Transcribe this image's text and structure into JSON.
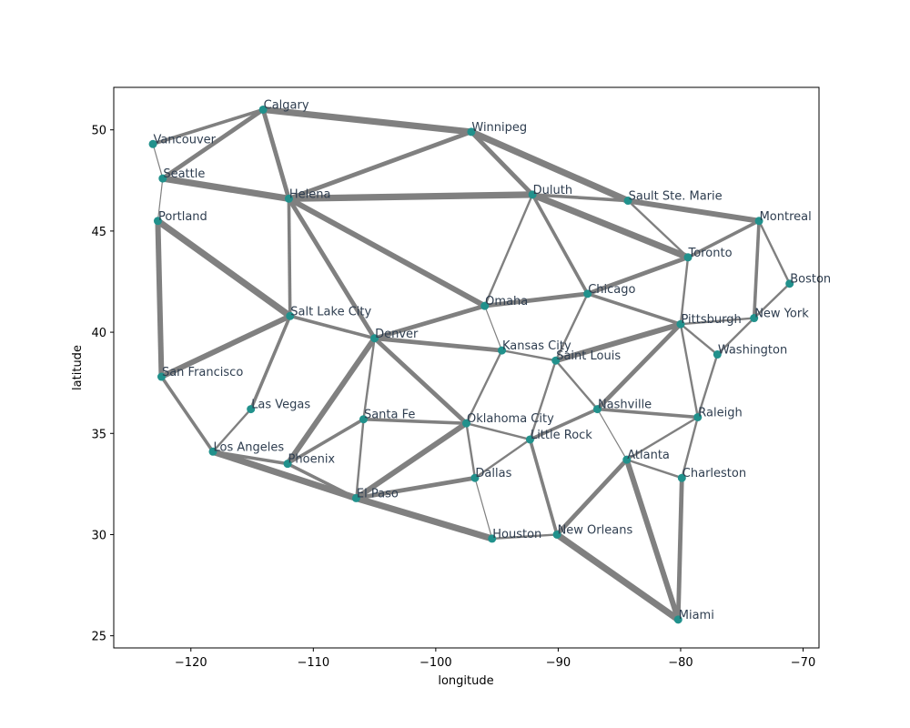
{
  "chart_data": {
    "type": "scatter",
    "title": "",
    "xlabel": "longitude",
    "ylabel": "latitude",
    "xlim": [
      -126.3,
      -68.7
    ],
    "ylim": [
      24.4,
      52.1
    ],
    "x_ticks": [
      -120,
      -110,
      -100,
      -90,
      -80,
      -70
    ],
    "x_tick_labels": [
      "−120",
      "−110",
      "−100",
      "−90",
      "−80",
      "−70"
    ],
    "y_ticks": [
      25,
      30,
      35,
      40,
      45,
      50
    ],
    "y_tick_labels": [
      "25",
      "30",
      "35",
      "40",
      "45",
      "50"
    ],
    "grid": false,
    "colors": {
      "node": "#21918c",
      "edge": "#808080",
      "label": "#2e3d4f"
    },
    "nodes": [
      {
        "name": "Vancouver",
        "lon": -123.1,
        "lat": 49.3
      },
      {
        "name": "Calgary",
        "lon": -114.1,
        "lat": 51.0
      },
      {
        "name": "Winnipeg",
        "lon": -97.1,
        "lat": 49.9
      },
      {
        "name": "Seattle",
        "lon": -122.3,
        "lat": 47.6
      },
      {
        "name": "Helena",
        "lon": -112.0,
        "lat": 46.6
      },
      {
        "name": "Duluth",
        "lon": -92.1,
        "lat": 46.8
      },
      {
        "name": "Sault Ste. Marie",
        "lon": -84.3,
        "lat": 46.5
      },
      {
        "name": "Montreal",
        "lon": -73.6,
        "lat": 45.5
      },
      {
        "name": "Portland",
        "lon": -122.7,
        "lat": 45.5
      },
      {
        "name": "Toronto",
        "lon": -79.4,
        "lat": 43.7
      },
      {
        "name": "Boston",
        "lon": -71.1,
        "lat": 42.4
      },
      {
        "name": "Omaha",
        "lon": -96.0,
        "lat": 41.3
      },
      {
        "name": "Chicago",
        "lon": -87.6,
        "lat": 41.9
      },
      {
        "name": "Salt Lake City",
        "lon": -111.9,
        "lat": 40.8
      },
      {
        "name": "Pittsburgh",
        "lon": -80.0,
        "lat": 40.4
      },
      {
        "name": "New York",
        "lon": -74.0,
        "lat": 40.7
      },
      {
        "name": "Denver",
        "lon": -105.0,
        "lat": 39.7
      },
      {
        "name": "Kansas City",
        "lon": -94.6,
        "lat": 39.1
      },
      {
        "name": "Washington",
        "lon": -77.0,
        "lat": 38.9
      },
      {
        "name": "Saint Louis",
        "lon": -90.2,
        "lat": 38.6
      },
      {
        "name": "San Francisco",
        "lon": -122.4,
        "lat": 37.8
      },
      {
        "name": "Las Vegas",
        "lon": -115.1,
        "lat": 36.2
      },
      {
        "name": "Nashville",
        "lon": -86.8,
        "lat": 36.2
      },
      {
        "name": "Raleigh",
        "lon": -78.6,
        "lat": 35.8
      },
      {
        "name": "Santa Fe",
        "lon": -105.9,
        "lat": 35.7
      },
      {
        "name": "Oklahoma City",
        "lon": -97.5,
        "lat": 35.5
      },
      {
        "name": "Little Rock",
        "lon": -92.3,
        "lat": 34.7
      },
      {
        "name": "Los Angeles",
        "lon": -118.2,
        "lat": 34.1
      },
      {
        "name": "Atlanta",
        "lon": -84.4,
        "lat": 33.7
      },
      {
        "name": "Phoenix",
        "lon": -112.1,
        "lat": 33.5
      },
      {
        "name": "Dallas",
        "lon": -96.8,
        "lat": 32.8
      },
      {
        "name": "Charleston",
        "lon": -79.9,
        "lat": 32.8
      },
      {
        "name": "El Paso",
        "lon": -106.5,
        "lat": 31.8
      },
      {
        "name": "Houston",
        "lon": -95.4,
        "lat": 29.8
      },
      {
        "name": "New Orleans",
        "lon": -90.1,
        "lat": 30.0
      },
      {
        "name": "Miami",
        "lon": -80.2,
        "lat": 25.8
      }
    ],
    "edges": [
      {
        "from": "Vancouver",
        "to": "Calgary",
        "weight": 3
      },
      {
        "from": "Vancouver",
        "to": "Seattle",
        "weight": 1
      },
      {
        "from": "Calgary",
        "to": "Seattle",
        "weight": 4
      },
      {
        "from": "Calgary",
        "to": "Winnipeg",
        "weight": 6
      },
      {
        "from": "Calgary",
        "to": "Helena",
        "weight": 4
      },
      {
        "from": "Winnipeg",
        "to": "Helena",
        "weight": 4
      },
      {
        "from": "Winnipeg",
        "to": "Duluth",
        "weight": 4
      },
      {
        "from": "Winnipeg",
        "to": "Sault Ste. Marie",
        "weight": 6
      },
      {
        "from": "Seattle",
        "to": "Helena",
        "weight": 6
      },
      {
        "from": "Seattle",
        "to": "Portland",
        "weight": 1
      },
      {
        "from": "Helena",
        "to": "Duluth",
        "weight": 6
      },
      {
        "from": "Helena",
        "to": "Salt Lake City",
        "weight": 3
      },
      {
        "from": "Helena",
        "to": "Denver",
        "weight": 4
      },
      {
        "from": "Helena",
        "to": "Omaha",
        "weight": 5
      },
      {
        "from": "Duluth",
        "to": "Sault Ste. Marie",
        "weight": 3
      },
      {
        "from": "Duluth",
        "to": "Toronto",
        "weight": 6
      },
      {
        "from": "Duluth",
        "to": "Omaha",
        "weight": 2
      },
      {
        "from": "Duluth",
        "to": "Chicago",
        "weight": 3
      },
      {
        "from": "Sault Ste. Marie",
        "to": "Montreal",
        "weight": 5
      },
      {
        "from": "Sault Ste. Marie",
        "to": "Toronto",
        "weight": 2
      },
      {
        "from": "Montreal",
        "to": "Toronto",
        "weight": 3
      },
      {
        "from": "Montreal",
        "to": "Boston",
        "weight": 2
      },
      {
        "from": "Montreal",
        "to": "New York",
        "weight": 3
      },
      {
        "from": "Portland",
        "to": "San Francisco",
        "weight": 5
      },
      {
        "from": "Portland",
        "to": "Salt Lake City",
        "weight": 6
      },
      {
        "from": "Toronto",
        "to": "Chicago",
        "weight": 4
      },
      {
        "from": "Toronto",
        "to": "Pittsburgh",
        "weight": 2
      },
      {
        "from": "Boston",
        "to": "New York",
        "weight": 2
      },
      {
        "from": "Omaha",
        "to": "Chicago",
        "weight": 4
      },
      {
        "from": "Omaha",
        "to": "Denver",
        "weight": 4
      },
      {
        "from": "Omaha",
        "to": "Kansas City",
        "weight": 1
      },
      {
        "from": "Chicago",
        "to": "Pittsburgh",
        "weight": 3
      },
      {
        "from": "Chicago",
        "to": "Saint Louis",
        "weight": 2
      },
      {
        "from": "Salt Lake City",
        "to": "San Francisco",
        "weight": 5
      },
      {
        "from": "Salt Lake City",
        "to": "Denver",
        "weight": 3
      },
      {
        "from": "Salt Lake City",
        "to": "Las Vegas",
        "weight": 3
      },
      {
        "from": "Pittsburgh",
        "to": "New York",
        "weight": 2
      },
      {
        "from": "Pittsburgh",
        "to": "Washington",
        "weight": 2
      },
      {
        "from": "Pittsburgh",
        "to": "Saint Louis",
        "weight": 5
      },
      {
        "from": "Pittsburgh",
        "to": "Nashville",
        "weight": 4
      },
      {
        "from": "Pittsburgh",
        "to": "Raleigh",
        "weight": 2
      },
      {
        "from": "New York",
        "to": "Washington",
        "weight": 2
      },
      {
        "from": "Denver",
        "to": "Kansas City",
        "weight": 4
      },
      {
        "from": "Denver",
        "to": "Phoenix",
        "weight": 5
      },
      {
        "from": "Denver",
        "to": "Santa Fe",
        "weight": 2
      },
      {
        "from": "Denver",
        "to": "Oklahoma City",
        "weight": 4
      },
      {
        "from": "Kansas City",
        "to": "Saint Louis",
        "weight": 2
      },
      {
        "from": "Kansas City",
        "to": "Oklahoma City",
        "weight": 2
      },
      {
        "from": "Washington",
        "to": "Raleigh",
        "weight": 2
      },
      {
        "from": "Saint Louis",
        "to": "Nashville",
        "weight": 2
      },
      {
        "from": "Saint Louis",
        "to": "Little Rock",
        "weight": 2
      },
      {
        "from": "San Francisco",
        "to": "Los Angeles",
        "weight": 3
      },
      {
        "from": "Las Vegas",
        "to": "Los Angeles",
        "weight": 2
      },
      {
        "from": "Nashville",
        "to": "Raleigh",
        "weight": 3
      },
      {
        "from": "Nashville",
        "to": "Atlanta",
        "weight": 1
      },
      {
        "from": "Nashville",
        "to": "Little Rock",
        "weight": 3
      },
      {
        "from": "Raleigh",
        "to": "Atlanta",
        "weight": 2
      },
      {
        "from": "Raleigh",
        "to": "Charleston",
        "weight": 2
      },
      {
        "from": "Santa Fe",
        "to": "Oklahoma City",
        "weight": 3
      },
      {
        "from": "Santa Fe",
        "to": "El Paso",
        "weight": 2
      },
      {
        "from": "Santa Fe",
        "to": "Phoenix",
        "weight": 3
      },
      {
        "from": "Oklahoma City",
        "to": "Little Rock",
        "weight": 2
      },
      {
        "from": "Oklahoma City",
        "to": "Dallas",
        "weight": 2
      },
      {
        "from": "Oklahoma City",
        "to": "El Paso",
        "weight": 5
      },
      {
        "from": "Little Rock",
        "to": "Dallas",
        "weight": 2
      },
      {
        "from": "Little Rock",
        "to": "New Orleans",
        "weight": 3
      },
      {
        "from": "Los Angeles",
        "to": "Phoenix",
        "weight": 3
      },
      {
        "from": "Los Angeles",
        "to": "El Paso",
        "weight": 6
      },
      {
        "from": "Atlanta",
        "to": "Charleston",
        "weight": 2
      },
      {
        "from": "Atlanta",
        "to": "New Orleans",
        "weight": 4
      },
      {
        "from": "Atlanta",
        "to": "Miami",
        "weight": 5
      },
      {
        "from": "Phoenix",
        "to": "El Paso",
        "weight": 3
      },
      {
        "from": "Dallas",
        "to": "El Paso",
        "weight": 4
      },
      {
        "from": "Dallas",
        "to": "Houston",
        "weight": 1
      },
      {
        "from": "Charleston",
        "to": "Miami",
        "weight": 4
      },
      {
        "from": "El Paso",
        "to": "Houston",
        "weight": 6
      },
      {
        "from": "Houston",
        "to": "New Orleans",
        "weight": 2
      },
      {
        "from": "New Orleans",
        "to": "Miami",
        "weight": 6
      }
    ]
  }
}
